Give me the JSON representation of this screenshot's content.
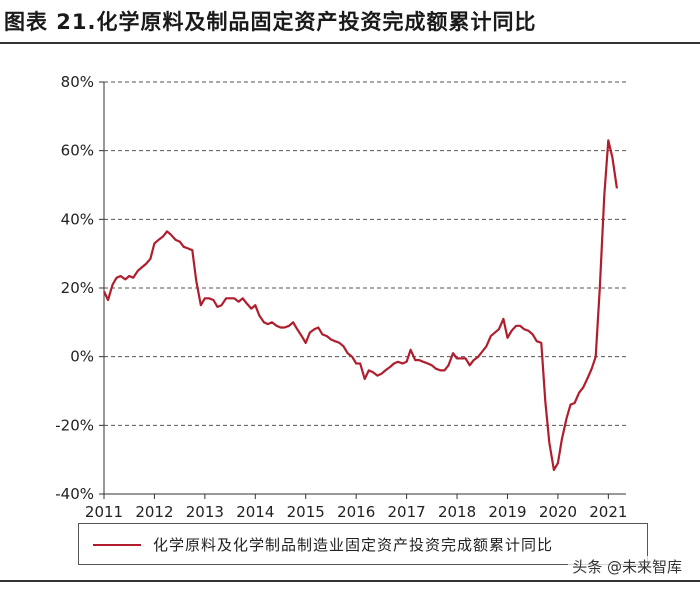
{
  "figure": {
    "title": "图表 21.化学原料及制品固定资产投资完成额累计同比",
    "watermark": "头条 @未来智库"
  },
  "chart_data": {
    "type": "line",
    "title": "图表 21.化学原料及制品固定资产投资完成额累计同比",
    "xlabel": "",
    "ylabel": "",
    "ylim": [
      -40,
      80
    ],
    "xlim": [
      2011,
      2021.35
    ],
    "yticks": [
      -40,
      -20,
      0,
      20,
      40,
      60,
      80
    ],
    "ytick_labels": [
      "-40%",
      "-20%",
      "0%",
      "20%",
      "40%",
      "60%",
      "80%"
    ],
    "xticks": [
      2011,
      2012,
      2013,
      2014,
      2015,
      2016,
      2017,
      2018,
      2019,
      2020,
      2021
    ],
    "xtick_labels": [
      "2011",
      "2012",
      "2013",
      "2014",
      "2015",
      "2016",
      "2017",
      "2018",
      "2019",
      "2020",
      "2021"
    ],
    "grid": "horizontal dashed",
    "legend_position": "bottom",
    "colors": {
      "series": "#b01e2d",
      "grid": "#555555"
    },
    "series": [
      {
        "name": "化学原料及化学制品制造业固定资产投资完成额累计同比",
        "x": [
          2011.0,
          2011.08,
          2011.17,
          2011.25,
          2011.33,
          2011.42,
          2011.5,
          2011.58,
          2011.67,
          2011.75,
          2011.83,
          2011.92,
          2012.0,
          2012.08,
          2012.17,
          2012.25,
          2012.33,
          2012.42,
          2012.5,
          2012.58,
          2012.67,
          2012.75,
          2012.83,
          2012.92,
          2013.0,
          2013.08,
          2013.17,
          2013.25,
          2013.33,
          2013.42,
          2013.5,
          2013.58,
          2013.67,
          2013.75,
          2013.83,
          2013.92,
          2014.0,
          2014.08,
          2014.17,
          2014.25,
          2014.33,
          2014.42,
          2014.5,
          2014.58,
          2014.67,
          2014.75,
          2014.83,
          2014.92,
          2015.0,
          2015.08,
          2015.17,
          2015.25,
          2015.33,
          2015.42,
          2015.5,
          2015.58,
          2015.67,
          2015.75,
          2015.83,
          2015.92,
          2016.0,
          2016.08,
          2016.17,
          2016.25,
          2016.33,
          2016.42,
          2016.5,
          2016.58,
          2016.67,
          2016.75,
          2016.83,
          2016.92,
          2017.0,
          2017.08,
          2017.17,
          2017.25,
          2017.33,
          2017.42,
          2017.5,
          2017.58,
          2017.67,
          2017.75,
          2017.83,
          2017.92,
          2018.0,
          2018.08,
          2018.17,
          2018.25,
          2018.33,
          2018.42,
          2018.5,
          2018.58,
          2018.67,
          2018.75,
          2018.83,
          2018.92,
          2019.0,
          2019.08,
          2019.17,
          2019.25,
          2019.33,
          2019.42,
          2019.5,
          2019.58,
          2019.67,
          2019.75,
          2019.83,
          2019.92,
          2020.0,
          2020.08,
          2020.17,
          2020.25,
          2020.33,
          2020.42,
          2020.5,
          2020.58,
          2020.67,
          2020.75,
          2020.83,
          2020.92,
          2021.0,
          2021.08,
          2021.17
        ],
        "values": [
          19,
          16.5,
          21,
          23,
          23.5,
          22.5,
          23.5,
          23,
          25,
          26,
          27,
          28.5,
          33,
          34,
          35,
          36.5,
          35.5,
          34,
          33.5,
          32,
          31.5,
          31,
          22,
          15,
          17,
          17,
          16.5,
          14.5,
          15,
          17,
          17,
          17,
          16,
          17,
          15.5,
          14,
          15,
          12,
          10,
          9.5,
          10,
          9,
          8.5,
          8.5,
          9,
          10,
          8,
          6,
          4,
          7,
          8,
          8.5,
          6.5,
          6,
          5,
          4.5,
          4,
          3,
          1,
          0,
          -2,
          -2,
          -6.5,
          -4,
          -4.5,
          -5.5,
          -5,
          -4,
          -3,
          -2,
          -1.5,
          -2,
          -1.5,
          2,
          -1,
          -1,
          -1.5,
          -2,
          -2.5,
          -3.5,
          -4,
          -4,
          -2.5,
          1,
          -0.5,
          -0.5,
          -0.5,
          -2.5,
          -1,
          0,
          1.5,
          3,
          6,
          7,
          8,
          11,
          5.5,
          7.5,
          9,
          9,
          8,
          7.5,
          6.5,
          4.5,
          4,
          -13,
          -25,
          -33,
          -31,
          -24,
          -18,
          -14,
          -13.5,
          -10.5,
          -9,
          -6.5,
          -3.5,
          0,
          20,
          47,
          63,
          58,
          49
        ]
      }
    ]
  }
}
